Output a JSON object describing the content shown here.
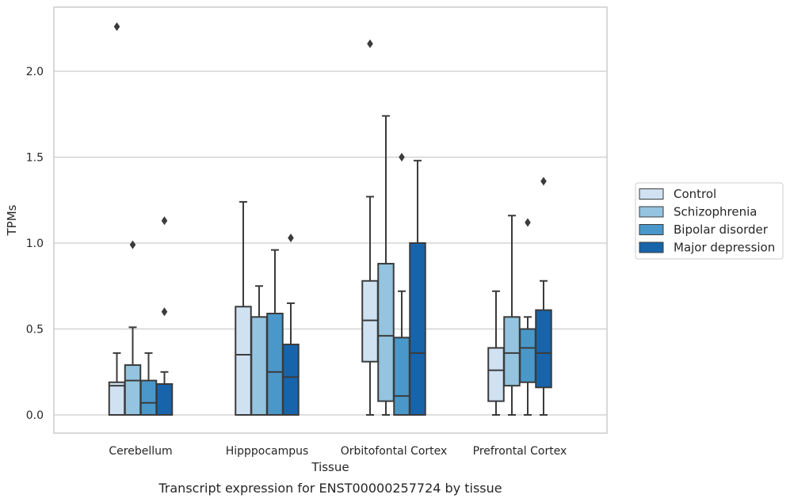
{
  "chart_data": {
    "type": "box",
    "caption": "Transcript expression for ENST00000257724 by tissue",
    "xlabel": "Tissue",
    "ylabel": "TPMs",
    "ylim": [
      -0.11,
      2.38
    ],
    "yticks": [
      "0.0",
      "0.5",
      "1.0",
      "1.5",
      "2.0"
    ],
    "ytick_values": [
      0.0,
      0.5,
      1.0,
      1.5,
      2.0
    ],
    "grid": true,
    "legend_position": "right",
    "categories": [
      "Cerebellum",
      "Hipppocampus",
      "Orbitofontal Cortex",
      "Prefrontal Cortex"
    ],
    "series": [
      {
        "name": "Control",
        "color": "#d0e1f2",
        "boxes": [
          {
            "whislo": 0.0,
            "q1": 0.0,
            "med": 0.17,
            "q3": 0.19,
            "whishi": 0.36,
            "fliers": [
              2.26
            ]
          },
          {
            "whislo": 0.0,
            "q1": 0.0,
            "med": 0.35,
            "q3": 0.63,
            "whishi": 1.24,
            "fliers": []
          },
          {
            "whislo": 0.0,
            "q1": 0.31,
            "med": 0.55,
            "q3": 0.78,
            "whishi": 1.27,
            "fliers": [
              2.16
            ]
          },
          {
            "whislo": 0.0,
            "q1": 0.08,
            "med": 0.26,
            "q3": 0.39,
            "whishi": 0.72,
            "fliers": []
          }
        ]
      },
      {
        "name": "Schizophrenia",
        "color": "#94c4df",
        "boxes": [
          {
            "whislo": 0.0,
            "q1": 0.0,
            "med": 0.2,
            "q3": 0.29,
            "whishi": 0.51,
            "fliers": [
              0.99
            ]
          },
          {
            "whislo": 0.0,
            "q1": 0.0,
            "med": 0.0,
            "q3": 0.57,
            "whishi": 0.75,
            "fliers": []
          },
          {
            "whislo": 0.0,
            "q1": 0.08,
            "med": 0.46,
            "q3": 0.88,
            "whishi": 1.74,
            "fliers": []
          },
          {
            "whislo": 0.0,
            "q1": 0.17,
            "med": 0.36,
            "q3": 0.57,
            "whishi": 1.16,
            "fliers": []
          }
        ]
      },
      {
        "name": "Bipolar disorder",
        "color": "#4a98c9",
        "boxes": [
          {
            "whislo": 0.0,
            "q1": 0.0,
            "med": 0.07,
            "q3": 0.2,
            "whishi": 0.36,
            "fliers": []
          },
          {
            "whislo": 0.0,
            "q1": 0.0,
            "med": 0.25,
            "q3": 0.59,
            "whishi": 0.96,
            "fliers": []
          },
          {
            "whislo": 0.0,
            "q1": 0.0,
            "med": 0.11,
            "q3": 0.45,
            "whishi": 0.72,
            "fliers": [
              1.5
            ]
          },
          {
            "whislo": 0.0,
            "q1": 0.19,
            "med": 0.39,
            "q3": 0.5,
            "whishi": 0.57,
            "fliers": [
              1.12
            ]
          }
        ]
      },
      {
        "name": "Major depression",
        "color": "#1764ab",
        "boxes": [
          {
            "whislo": 0.0,
            "q1": 0.0,
            "med": 0.18,
            "q3": 0.18,
            "whishi": 0.25,
            "fliers": [
              0.6,
              1.13
            ]
          },
          {
            "whislo": 0.0,
            "q1": 0.0,
            "med": 0.22,
            "q3": 0.41,
            "whishi": 0.65,
            "fliers": [
              1.03
            ]
          },
          {
            "whislo": 0.0,
            "q1": 0.0,
            "med": 0.36,
            "q3": 1.0,
            "whishi": 1.48,
            "fliers": []
          },
          {
            "whislo": 0.0,
            "q1": 0.16,
            "med": 0.36,
            "q3": 0.61,
            "whishi": 0.78,
            "fliers": [
              1.36
            ]
          }
        ]
      }
    ]
  }
}
